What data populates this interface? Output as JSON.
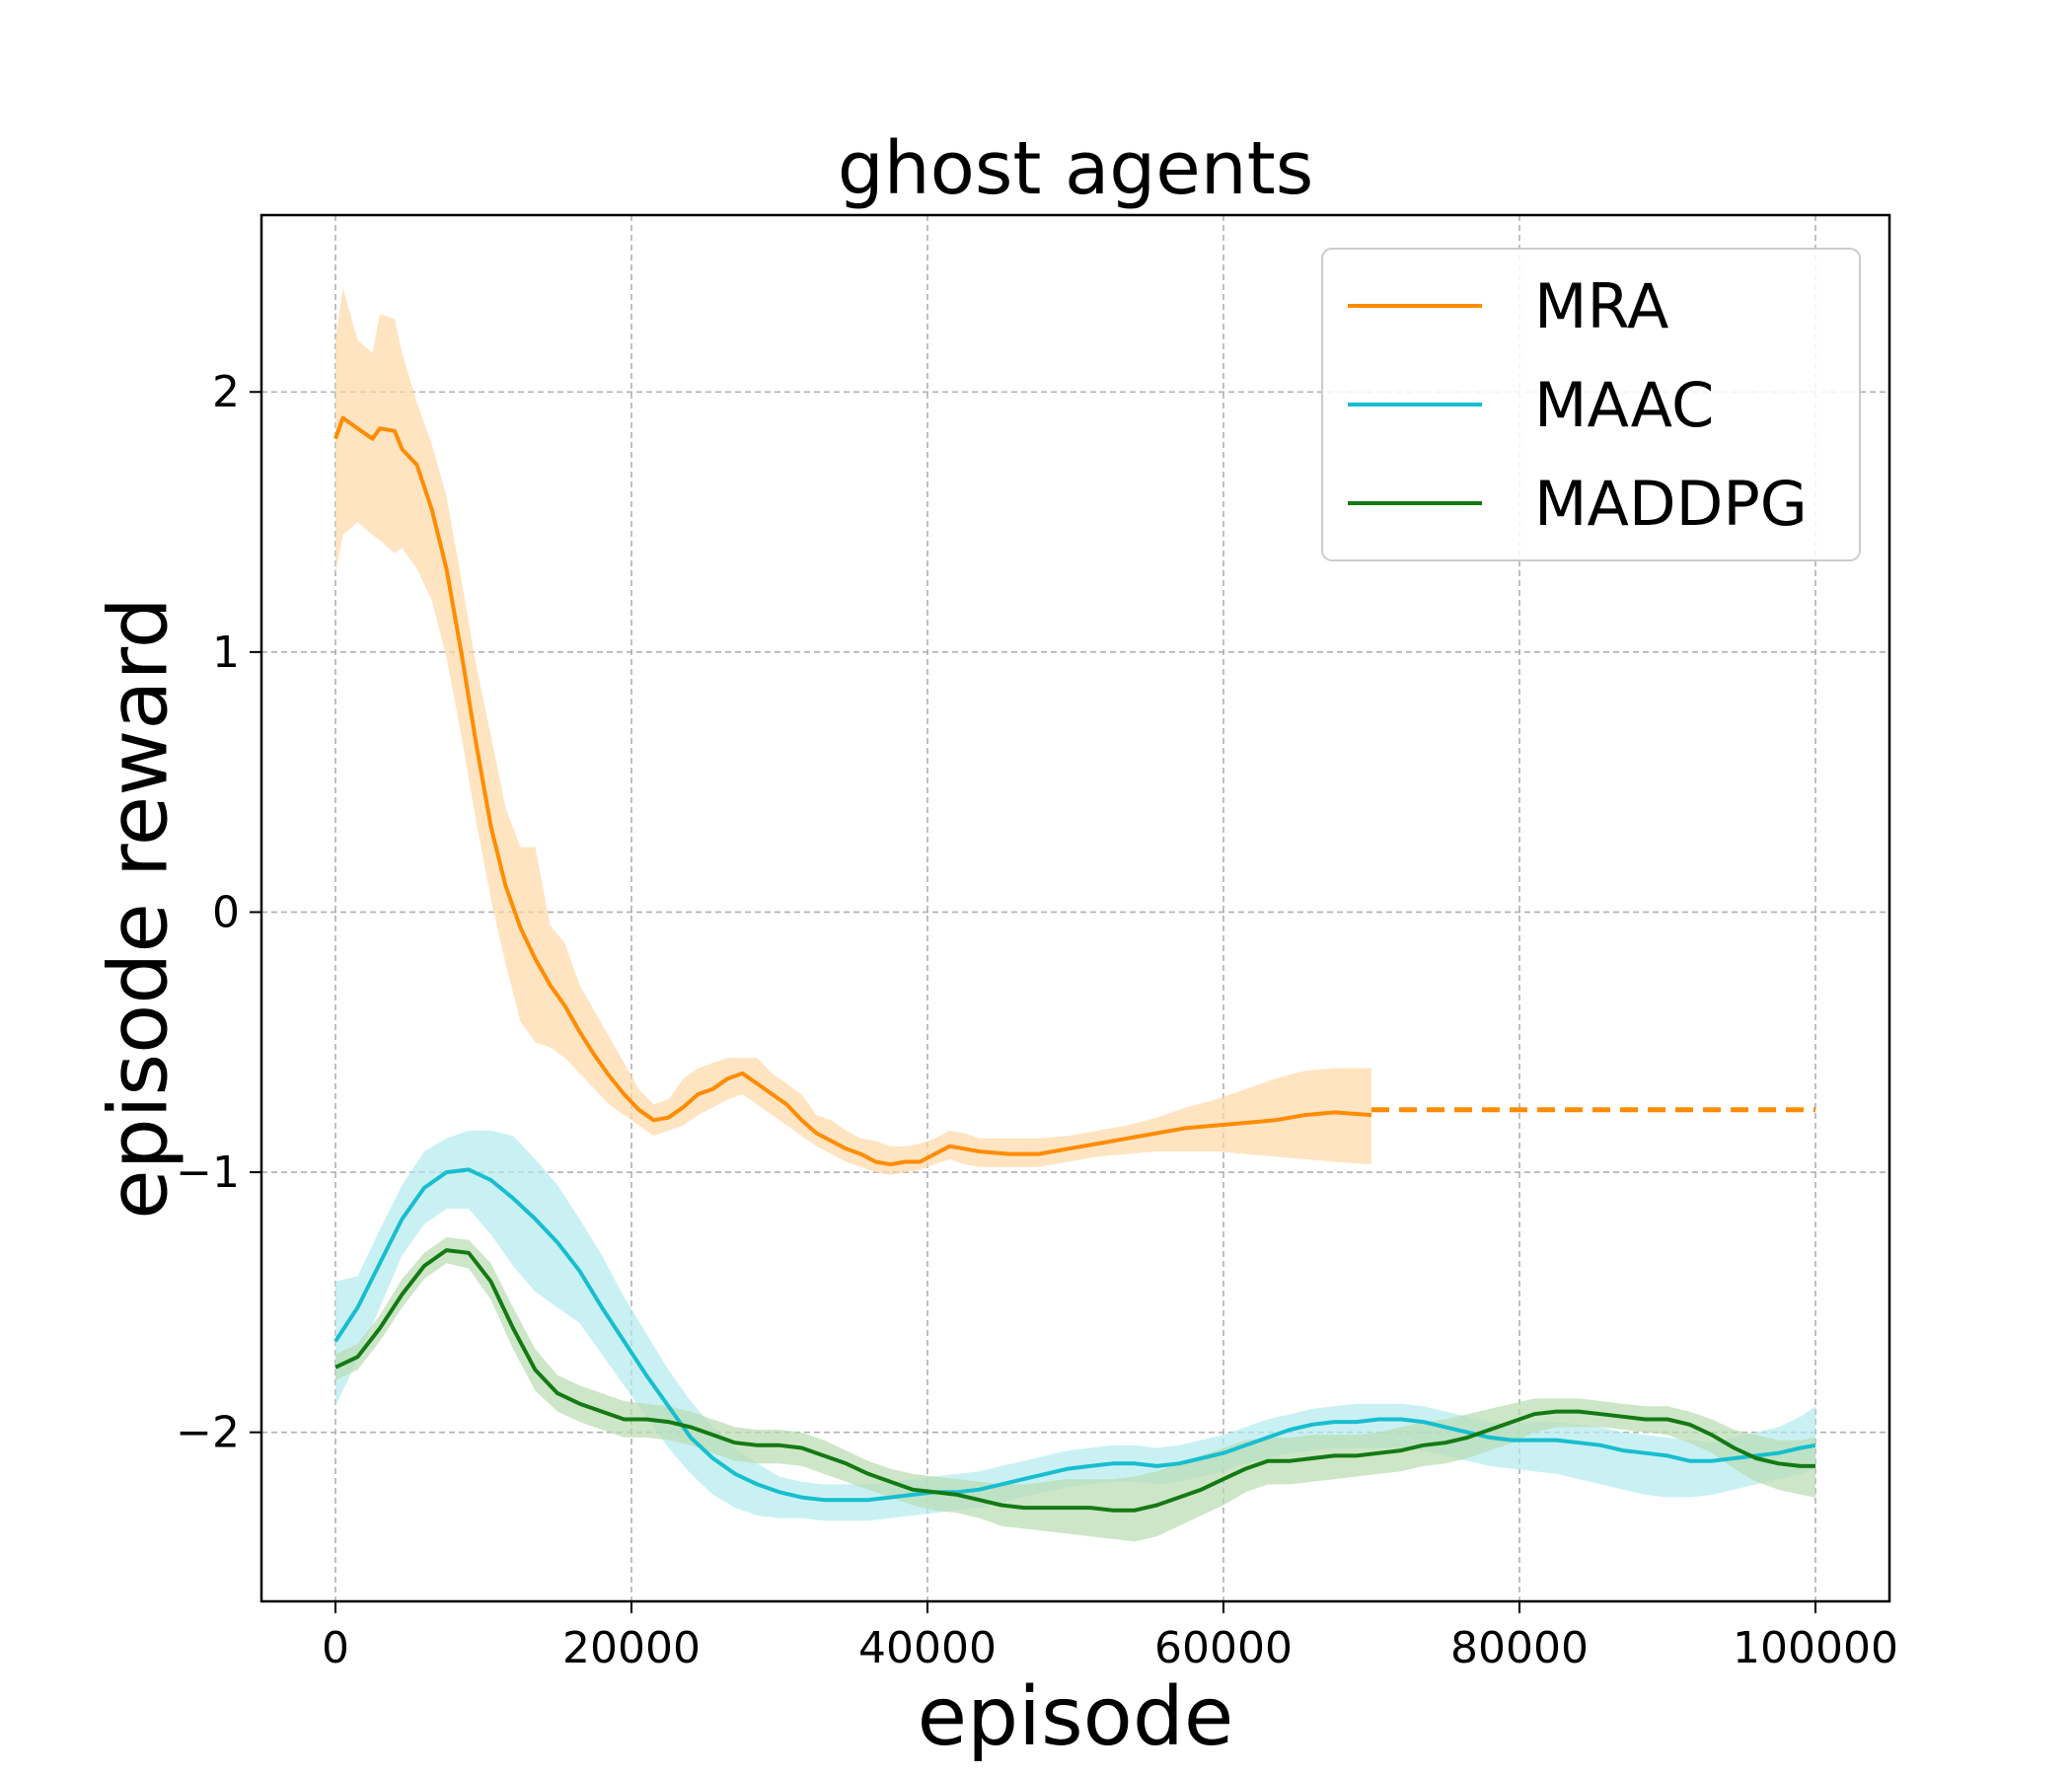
{
  "chart_data": {
    "type": "line",
    "title": "ghost agents",
    "xlabel": "episode",
    "ylabel": "episode reward",
    "xlim": [
      -5000,
      105000
    ],
    "ylim": [
      -2.65,
      2.68
    ],
    "x_ticks": [
      0,
      20000,
      40000,
      60000,
      80000,
      100000
    ],
    "x_tick_labels": [
      "0",
      "20000",
      "40000",
      "60000",
      "80000",
      "100000"
    ],
    "y_ticks": [
      -2,
      -1,
      0,
      1,
      2
    ],
    "y_tick_labels": [
      "−2",
      "−1",
      "0",
      "1",
      "2"
    ],
    "grid": true,
    "legend_position": "top-right",
    "series": [
      {
        "name": "MRA",
        "color": "#ff8c00",
        "band_color": "#ffd8a8",
        "x": [
          0,
          500,
          1500,
          2500,
          3000,
          4000,
          4500,
          5500,
          6500,
          7500,
          8500,
          9500,
          10500,
          11500,
          12500,
          13500,
          14500,
          15500,
          16500,
          17500,
          18500,
          19500,
          20500,
          21500,
          22500,
          23500,
          24500,
          25500,
          26500,
          27500,
          28500,
          29500,
          30500,
          31500,
          32500,
          33500,
          34500,
          35500,
          36500,
          37500,
          38500,
          39500,
          40500,
          41500,
          42500,
          43500,
          45500,
          47500,
          49500,
          51500,
          53500,
          55500,
          57500,
          59500,
          61500,
          63500,
          65500,
          67500,
          70000
        ],
        "y": [
          1.82,
          1.9,
          1.86,
          1.82,
          1.86,
          1.85,
          1.78,
          1.72,
          1.55,
          1.32,
          1.0,
          0.65,
          0.33,
          0.1,
          -0.06,
          -0.18,
          -0.28,
          -0.36,
          -0.46,
          -0.55,
          -0.63,
          -0.7,
          -0.76,
          -0.8,
          -0.79,
          -0.75,
          -0.7,
          -0.68,
          -0.64,
          -0.62,
          -0.66,
          -0.7,
          -0.74,
          -0.8,
          -0.85,
          -0.88,
          -0.91,
          -0.93,
          -0.96,
          -0.97,
          -0.96,
          -0.96,
          -0.93,
          -0.9,
          -0.91,
          -0.92,
          -0.93,
          -0.93,
          -0.91,
          -0.89,
          -0.87,
          -0.85,
          -0.83,
          -0.82,
          -0.81,
          -0.8,
          -0.78,
          -0.77,
          -0.78
        ],
        "upper": [
          2.2,
          2.4,
          2.2,
          2.15,
          2.3,
          2.28,
          2.15,
          1.96,
          1.8,
          1.6,
          1.28,
          0.95,
          0.68,
          0.4,
          0.25,
          0.25,
          -0.05,
          -0.12,
          -0.28,
          -0.38,
          -0.48,
          -0.58,
          -0.68,
          -0.74,
          -0.72,
          -0.64,
          -0.6,
          -0.58,
          -0.56,
          -0.56,
          -0.56,
          -0.62,
          -0.66,
          -0.7,
          -0.78,
          -0.8,
          -0.84,
          -0.87,
          -0.88,
          -0.9,
          -0.9,
          -0.89,
          -0.87,
          -0.84,
          -0.85,
          -0.87,
          -0.87,
          -0.87,
          -0.86,
          -0.84,
          -0.82,
          -0.79,
          -0.75,
          -0.72,
          -0.68,
          -0.64,
          -0.61,
          -0.6,
          -0.6
        ],
        "lower": [
          1.3,
          1.45,
          1.5,
          1.45,
          1.43,
          1.38,
          1.4,
          1.32,
          1.2,
          0.98,
          0.68,
          0.35,
          0.05,
          -0.2,
          -0.42,
          -0.5,
          -0.52,
          -0.56,
          -0.62,
          -0.68,
          -0.74,
          -0.78,
          -0.82,
          -0.86,
          -0.84,
          -0.82,
          -0.78,
          -0.75,
          -0.72,
          -0.7,
          -0.74,
          -0.78,
          -0.82,
          -0.86,
          -0.9,
          -0.93,
          -0.96,
          -0.98,
          -1.0,
          -1.01,
          -1.0,
          -0.99,
          -0.97,
          -0.95,
          -0.97,
          -0.98,
          -0.98,
          -0.98,
          -0.96,
          -0.94,
          -0.93,
          -0.92,
          -0.92,
          -0.92,
          -0.93,
          -0.94,
          -0.95,
          -0.96,
          -0.97
        ]
      },
      {
        "name": "MAAC",
        "color": "#17becf",
        "band_color": "#b2ebee",
        "x": [
          0,
          1500,
          3000,
          4500,
          6000,
          7500,
          9000,
          10500,
          12000,
          13500,
          15000,
          16500,
          18000,
          19500,
          21000,
          22500,
          24000,
          25500,
          27000,
          28500,
          30000,
          31500,
          33000,
          34500,
          36000,
          37500,
          39000,
          40500,
          42000,
          43500,
          45000,
          46500,
          48000,
          49500,
          51000,
          52500,
          54000,
          55500,
          57000,
          58500,
          60000,
          61500,
          63000,
          64500,
          66000,
          67500,
          69000,
          70500,
          72000,
          73500,
          75000,
          76500,
          78000,
          79500,
          81000,
          82500,
          84000,
          85500,
          87000,
          88500,
          90000,
          91500,
          93000,
          94500,
          96000,
          97500,
          99000,
          100000
        ],
        "y": [
          -1.65,
          -1.52,
          -1.35,
          -1.18,
          -1.06,
          -1.0,
          -0.99,
          -1.03,
          -1.1,
          -1.18,
          -1.27,
          -1.38,
          -1.52,
          -1.65,
          -1.78,
          -1.9,
          -2.02,
          -2.1,
          -2.16,
          -2.2,
          -2.23,
          -2.25,
          -2.26,
          -2.26,
          -2.26,
          -2.25,
          -2.24,
          -2.23,
          -2.23,
          -2.22,
          -2.2,
          -2.18,
          -2.16,
          -2.14,
          -2.13,
          -2.12,
          -2.12,
          -2.13,
          -2.12,
          -2.1,
          -2.08,
          -2.05,
          -2.02,
          -1.99,
          -1.97,
          -1.96,
          -1.96,
          -1.95,
          -1.95,
          -1.96,
          -1.98,
          -2.0,
          -2.02,
          -2.03,
          -2.03,
          -2.03,
          -2.04,
          -2.05,
          -2.07,
          -2.08,
          -2.09,
          -2.11,
          -2.11,
          -2.1,
          -2.09,
          -2.08,
          -2.06,
          -2.05
        ],
        "upper": [
          -1.42,
          -1.4,
          -1.22,
          -1.05,
          -0.92,
          -0.87,
          -0.84,
          -0.84,
          -0.86,
          -0.95,
          -1.05,
          -1.18,
          -1.32,
          -1.48,
          -1.62,
          -1.76,
          -1.88,
          -1.98,
          -2.06,
          -2.12,
          -2.17,
          -2.19,
          -2.2,
          -2.2,
          -2.2,
          -2.19,
          -2.18,
          -2.17,
          -2.16,
          -2.15,
          -2.13,
          -2.11,
          -2.09,
          -2.07,
          -2.06,
          -2.05,
          -2.05,
          -2.06,
          -2.05,
          -2.03,
          -2.01,
          -1.98,
          -1.95,
          -1.93,
          -1.91,
          -1.9,
          -1.89,
          -1.89,
          -1.89,
          -1.9,
          -1.92,
          -1.94,
          -1.96,
          -1.97,
          -1.96,
          -1.96,
          -1.97,
          -1.98,
          -2.0,
          -2.01,
          -2.02,
          -2.03,
          -2.04,
          -2.02,
          -2.0,
          -1.98,
          -1.94,
          -1.9
        ],
        "lower": [
          -1.9,
          -1.72,
          -1.52,
          -1.32,
          -1.2,
          -1.14,
          -1.14,
          -1.24,
          -1.36,
          -1.46,
          -1.52,
          -1.58,
          -1.7,
          -1.82,
          -1.94,
          -2.06,
          -2.16,
          -2.24,
          -2.29,
          -2.32,
          -2.33,
          -2.33,
          -2.34,
          -2.34,
          -2.34,
          -2.33,
          -2.32,
          -2.31,
          -2.3,
          -2.29,
          -2.27,
          -2.25,
          -2.23,
          -2.21,
          -2.2,
          -2.19,
          -2.19,
          -2.2,
          -2.19,
          -2.17,
          -2.15,
          -2.12,
          -2.1,
          -2.08,
          -2.07,
          -2.06,
          -2.06,
          -2.06,
          -2.06,
          -2.07,
          -2.09,
          -2.11,
          -2.13,
          -2.14,
          -2.15,
          -2.16,
          -2.18,
          -2.2,
          -2.22,
          -2.24,
          -2.25,
          -2.25,
          -2.24,
          -2.22,
          -2.2,
          -2.18,
          -2.16,
          -2.14
        ]
      },
      {
        "name": "MADDPG",
        "color": "#137a13",
        "band_color": "#b9dcb0",
        "x": [
          0,
          1500,
          3000,
          4500,
          6000,
          7500,
          9000,
          10500,
          12000,
          13500,
          15000,
          16500,
          18000,
          19500,
          21000,
          22500,
          24000,
          25500,
          27000,
          28500,
          30000,
          31500,
          33000,
          34500,
          36000,
          37500,
          39000,
          40500,
          42000,
          43500,
          45000,
          46500,
          48000,
          49500,
          51000,
          52500,
          54000,
          55500,
          57000,
          58500,
          60000,
          61500,
          63000,
          64500,
          66000,
          67500,
          69000,
          70500,
          72000,
          73500,
          75000,
          76500,
          78000,
          79500,
          81000,
          82500,
          84000,
          85500,
          87000,
          88500,
          90000,
          91500,
          93000,
          94500,
          96000,
          97500,
          99000,
          100000
        ],
        "y": [
          -1.75,
          -1.71,
          -1.6,
          -1.47,
          -1.36,
          -1.3,
          -1.31,
          -1.42,
          -1.6,
          -1.76,
          -1.85,
          -1.89,
          -1.92,
          -1.95,
          -1.95,
          -1.96,
          -1.98,
          -2.01,
          -2.04,
          -2.05,
          -2.05,
          -2.06,
          -2.09,
          -2.12,
          -2.16,
          -2.19,
          -2.22,
          -2.23,
          -2.24,
          -2.26,
          -2.28,
          -2.29,
          -2.29,
          -2.29,
          -2.29,
          -2.3,
          -2.3,
          -2.28,
          -2.25,
          -2.22,
          -2.18,
          -2.14,
          -2.11,
          -2.11,
          -2.1,
          -2.09,
          -2.09,
          -2.08,
          -2.07,
          -2.05,
          -2.04,
          -2.02,
          -1.99,
          -1.96,
          -1.93,
          -1.92,
          -1.92,
          -1.93,
          -1.94,
          -1.95,
          -1.95,
          -1.97,
          -2.01,
          -2.06,
          -2.1,
          -2.12,
          -2.13,
          -2.13
        ],
        "upper": [
          -1.7,
          -1.66,
          -1.55,
          -1.41,
          -1.31,
          -1.25,
          -1.26,
          -1.35,
          -1.52,
          -1.68,
          -1.78,
          -1.82,
          -1.85,
          -1.88,
          -1.89,
          -1.9,
          -1.92,
          -1.95,
          -1.98,
          -1.99,
          -1.99,
          -2.0,
          -2.03,
          -2.07,
          -2.11,
          -2.14,
          -2.16,
          -2.17,
          -2.18,
          -2.19,
          -2.2,
          -2.2,
          -2.19,
          -2.18,
          -2.18,
          -2.18,
          -2.17,
          -2.15,
          -2.12,
          -2.09,
          -2.06,
          -2.03,
          -2.02,
          -2.02,
          -2.01,
          -2.01,
          -2.01,
          -2.0,
          -1.98,
          -1.96,
          -1.95,
          -1.93,
          -1.91,
          -1.89,
          -1.87,
          -1.87,
          -1.87,
          -1.88,
          -1.89,
          -1.9,
          -1.9,
          -1.92,
          -1.95,
          -1.99,
          -2.01,
          -2.03,
          -2.03,
          -2.02
        ],
        "lower": [
          -1.8,
          -1.76,
          -1.65,
          -1.52,
          -1.41,
          -1.35,
          -1.37,
          -1.49,
          -1.68,
          -1.84,
          -1.92,
          -1.96,
          -1.99,
          -2.02,
          -2.02,
          -2.03,
          -2.05,
          -2.08,
          -2.11,
          -2.12,
          -2.12,
          -2.13,
          -2.16,
          -2.19,
          -2.22,
          -2.25,
          -2.28,
          -2.3,
          -2.31,
          -2.33,
          -2.36,
          -2.37,
          -2.38,
          -2.39,
          -2.4,
          -2.41,
          -2.42,
          -2.4,
          -2.36,
          -2.32,
          -2.28,
          -2.23,
          -2.2,
          -2.2,
          -2.19,
          -2.18,
          -2.17,
          -2.16,
          -2.15,
          -2.13,
          -2.12,
          -2.1,
          -2.07,
          -2.04,
          -2.0,
          -1.98,
          -1.98,
          -1.98,
          -1.99,
          -2.0,
          -2.01,
          -2.04,
          -2.08,
          -2.14,
          -2.19,
          -2.22,
          -2.24,
          -2.25
        ]
      }
    ],
    "extension": {
      "series": "MRA",
      "style": "dashed",
      "x": [
        70000,
        100000
      ],
      "y": [
        -0.76,
        -0.76
      ]
    }
  }
}
